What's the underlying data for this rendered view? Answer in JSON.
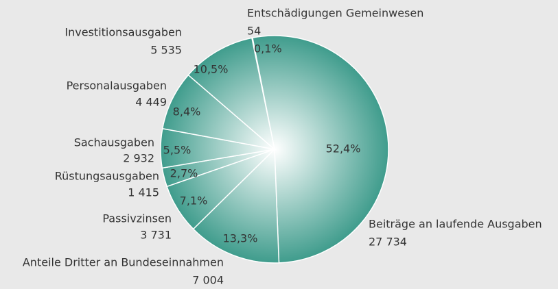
{
  "chart_data": {
    "type": "pie",
    "categories": [
      "Entschädigungen Gemeinwesen",
      "Beiträge an laufende Ausgaben",
      "Anteile Dritter an Bundeseinnahmen",
      "Passivzinsen",
      "Rüstungsausgaben",
      "Sachausgaben",
      "Personalausgaben",
      "Investitionsausgaben"
    ],
    "values": [
      54,
      27734,
      7004,
      3731,
      1415,
      2932,
      4449,
      5535
    ],
    "value_labels": [
      "54",
      "27 734",
      "7 004",
      "3 731",
      "1 415",
      "2 932",
      "4 449",
      "5 535"
    ],
    "percents": [
      0.1,
      52.4,
      13.3,
      7.1,
      2.7,
      5.5,
      8.4,
      10.5
    ],
    "percent_labels": [
      "0,1%",
      "52,4%",
      "13,3%",
      "7,1%",
      "2,7%",
      "5,5%",
      "8,4%",
      "10,5%"
    ],
    "color": "#3d9b8b"
  }
}
